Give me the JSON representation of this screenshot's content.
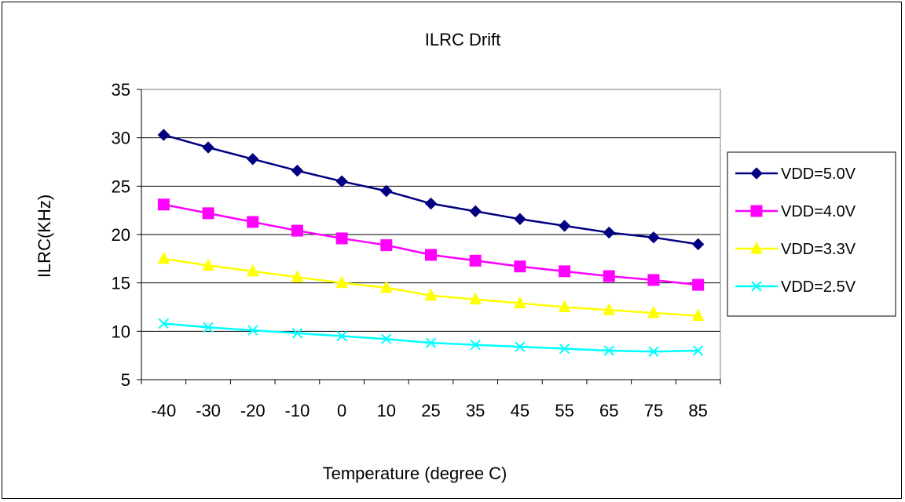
{
  "chart_data": {
    "type": "line",
    "title": "ILRC Drift",
    "xlabel": "Temperature (degree C)",
    "ylabel": "ILRC(KHz)",
    "categories": [
      "-40",
      "-30",
      "-20",
      "-10",
      "0",
      "10",
      "25",
      "35",
      "45",
      "55",
      "65",
      "75",
      "85"
    ],
    "ylim": [
      5,
      35
    ],
    "yticks": [
      "5",
      "10",
      "15",
      "20",
      "25",
      "30",
      "35"
    ],
    "grid": "horizontal",
    "legend_position": "right",
    "series": [
      {
        "name": "VDD=5.0V",
        "color": "#000080",
        "marker": "diamond",
        "values": [
          30.3,
          29.0,
          27.8,
          26.6,
          25.5,
          24.5,
          23.2,
          22.4,
          21.6,
          20.9,
          20.2,
          19.7,
          19.0
        ]
      },
      {
        "name": "VDD=4.0V",
        "color": "#FF00FF",
        "marker": "square",
        "values": [
          23.1,
          22.2,
          21.3,
          20.4,
          19.6,
          18.9,
          17.9,
          17.3,
          16.7,
          16.2,
          15.7,
          15.3,
          14.8
        ]
      },
      {
        "name": "VDD=3.3V",
        "color": "#FFFF00",
        "marker": "triangle",
        "values": [
          17.5,
          16.8,
          16.2,
          15.6,
          15.0,
          14.5,
          13.7,
          13.3,
          12.9,
          12.5,
          12.2,
          11.9,
          11.6
        ]
      },
      {
        "name": "VDD=2.5V",
        "color": "#00FFFF",
        "marker": "x",
        "values": [
          10.8,
          10.4,
          10.1,
          9.8,
          9.5,
          9.2,
          8.8,
          8.6,
          8.4,
          8.2,
          8.0,
          7.9,
          8.0
        ]
      }
    ]
  }
}
